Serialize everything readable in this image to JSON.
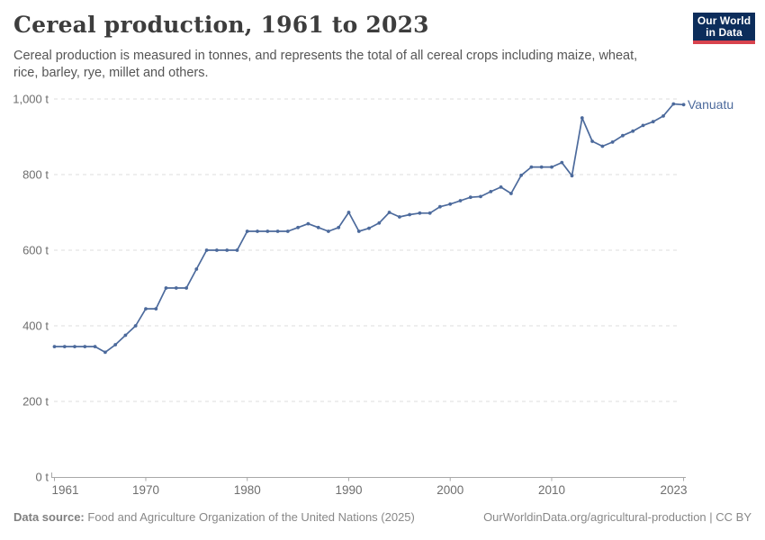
{
  "header": {
    "title": "Cereal production, 1961 to 2023",
    "subtitle_lines": [
      "Cereal production is measured in tonnes, and represents the total of all cereal crops including maize, wheat,",
      "rice, barley, rye, millet and others."
    ],
    "logo": {
      "line1": "Our World",
      "line2": "in Data"
    }
  },
  "chart_data": {
    "type": "line",
    "title": "Cereal production, 1961 to 2023",
    "xlabel": "",
    "ylabel": "",
    "unit": "t",
    "xlim": [
      1961,
      2023
    ],
    "ylim": [
      0,
      1000
    ],
    "grid": "horizontal-dashed",
    "legend_position": "end-of-line-label",
    "x_ticks": [
      1961,
      1970,
      1980,
      1990,
      2000,
      2010,
      2023
    ],
    "y_ticks": [
      {
        "value": 0,
        "label": "0 t"
      },
      {
        "value": 200,
        "label": "200 t"
      },
      {
        "value": 400,
        "label": "400 t"
      },
      {
        "value": 600,
        "label": "600 t"
      },
      {
        "value": 800,
        "label": "800 t"
      },
      {
        "value": 1000,
        "label": "1,000 t"
      }
    ],
    "series": [
      {
        "name": "Vanuatu",
        "color": "#4c6a9c",
        "x": [
          1961,
          1962,
          1963,
          1964,
          1965,
          1966,
          1967,
          1968,
          1969,
          1970,
          1971,
          1972,
          1973,
          1974,
          1975,
          1976,
          1977,
          1978,
          1979,
          1980,
          1981,
          1982,
          1983,
          1984,
          1985,
          1986,
          1987,
          1988,
          1989,
          1990,
          1991,
          1992,
          1993,
          1994,
          1995,
          1996,
          1997,
          1998,
          1999,
          2000,
          2001,
          2002,
          2003,
          2004,
          2005,
          2006,
          2007,
          2008,
          2009,
          2010,
          2011,
          2012,
          2013,
          2014,
          2015,
          2016,
          2017,
          2018,
          2019,
          2020,
          2021,
          2022,
          2023
        ],
        "values": [
          345,
          345,
          345,
          345,
          345,
          330,
          350,
          375,
          400,
          445,
          445,
          500,
          500,
          500,
          550,
          600,
          600,
          600,
          600,
          650,
          650,
          650,
          650,
          650,
          660,
          670,
          660,
          650,
          660,
          700,
          650,
          658,
          672,
          700,
          688,
          694,
          698,
          698,
          715,
          722,
          731,
          740,
          742,
          755,
          767,
          750,
          798,
          820,
          820,
          820,
          832,
          797,
          950,
          888,
          875,
          886,
          903,
          915,
          930,
          940,
          955,
          987,
          985
        ]
      }
    ],
    "entity_label": "Vanuatu"
  },
  "footer": {
    "source_label": "Data source:",
    "source_text": "Food and Agriculture Organization of the United Nations (2025)",
    "credit": "OurWorldinData.org/agricultural-production | CC BY"
  },
  "colors": {
    "line": "#4c6a9c",
    "grid": "#dcdcdc",
    "axis": "#a8a8a8",
    "tick_text": "#6e6e6e",
    "title": "#3d3d3d",
    "subtitle": "#555555",
    "footer": "#888888",
    "logo_bg": "#0c2d5b",
    "logo_bar": "#d8434e"
  }
}
